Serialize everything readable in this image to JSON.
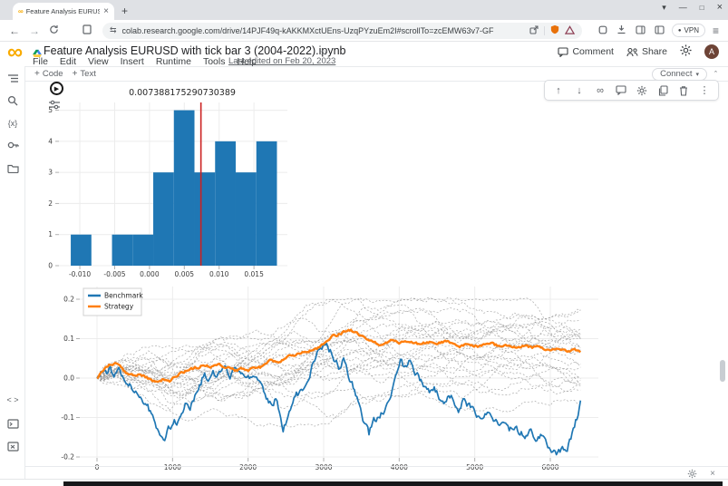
{
  "browser": {
    "tab_title": "Feature Analysis EURUSD with t",
    "url": "colab.research.google.com/drive/14PJF49q-kAKKMXctUEns-UzqPYzuEm2I#scrollTo=zcEMW63v7-GF",
    "vpn_label": "VPN"
  },
  "colab": {
    "title": "Feature Analysis EURUSD with tick bar 3 (2004-2022).ipynb",
    "menu_items": [
      "File",
      "Edit",
      "View",
      "Insert",
      "Runtime",
      "Tools",
      "Help"
    ],
    "last_edited": "Last edited on Feb 20, 2023",
    "comment_label": "Comment",
    "share_label": "Share",
    "avatar_letter": "A",
    "add_code_label": "Code",
    "add_text_label": "Text",
    "connect_label": "Connect"
  },
  "sidebar_icons": {
    "top": [
      "toc",
      "search",
      "variables",
      "secrets",
      "files"
    ],
    "bottom": [
      "code-snippets",
      "terminal",
      "executed-code"
    ]
  },
  "cell_toolbar_icons": [
    "move-up",
    "move-down",
    "link",
    "comment",
    "settings",
    "copy",
    "delete",
    "more"
  ],
  "chart_data": [
    {
      "type": "histogram",
      "title": "0.007388175290730389",
      "bar_color": "#1f77b4",
      "bin_start": -0.0113,
      "bin_width": 0.00296,
      "counts": [
        1,
        0,
        1,
        1,
        3,
        5,
        3,
        4,
        3,
        4
      ],
      "vline_x": 0.007388175290730389,
      "vline_color": "#cc2222",
      "xticks": [
        -0.01,
        -0.005,
        0.0,
        0.005,
        0.01,
        0.015
      ],
      "xtick_labels": [
        "-0.010",
        "-0.005",
        "0.000",
        "0.005",
        "0.010",
        "0.015"
      ],
      "yticks": [
        0,
        1,
        2,
        3,
        4,
        5
      ],
      "xlim": [
        -0.013,
        0.0198
      ],
      "ylim": [
        0,
        5.25
      ],
      "grid": true
    },
    {
      "type": "line",
      "xticks": [
        0,
        1000,
        2000,
        3000,
        4000,
        5000,
        6000
      ],
      "xtick_labels": [
        "0",
        "1000",
        "2000",
        "3000",
        "4000",
        "5000",
        "6000"
      ],
      "yticks": [
        0.2,
        0.1,
        0.0,
        -0.1,
        -0.2
      ],
      "ytick_labels": [
        "0.2",
        "0.1",
        "0.0",
        "-0.1",
        "-0.2"
      ],
      "xlim": [
        -300,
        6650
      ],
      "ylim": [
        -0.21,
        0.23
      ],
      "grid": true,
      "legend_position": "upper-left",
      "legend": [
        {
          "name": "Benchmark",
          "color": "#1f77b4"
        },
        {
          "name": "Strategy",
          "color": "#ff7f0e"
        }
      ],
      "series": [
        {
          "name": "Benchmark",
          "color": "#1f77b4",
          "points": [
            [
              0,
              0
            ],
            [
              60,
              0.018
            ],
            [
              120,
              0.012
            ],
            [
              160,
              0.028
            ],
            [
              220,
              0.008
            ],
            [
              280,
              0.02
            ],
            [
              340,
              0.005
            ],
            [
              400,
              -0.008
            ],
            [
              460,
              -0.025
            ],
            [
              520,
              -0.04
            ],
            [
              600,
              -0.05
            ],
            [
              660,
              -0.07
            ],
            [
              720,
              -0.09
            ],
            [
              780,
              -0.115
            ],
            [
              840,
              -0.15
            ],
            [
              900,
              -0.16
            ],
            [
              940,
              -0.12
            ],
            [
              980,
              -0.13
            ],
            [
              1020,
              -0.1
            ],
            [
              1060,
              -0.11
            ],
            [
              1120,
              -0.085
            ],
            [
              1180,
              -0.06
            ],
            [
              1240,
              -0.07
            ],
            [
              1300,
              -0.045
            ],
            [
              1360,
              -0.02
            ],
            [
              1420,
              0.012
            ],
            [
              1470,
              -0.005
            ],
            [
              1530,
              0.018
            ],
            [
              1580,
              0.002
            ],
            [
              1640,
              0.015
            ],
            [
              1700,
              0.025
            ],
            [
              1760,
              0.005
            ],
            [
              1820,
              0.018
            ],
            [
              1880,
              0.002
            ],
            [
              1940,
              0.012
            ],
            [
              2000,
              0.01
            ],
            [
              2060,
              -0.005
            ],
            [
              2120,
              0.002
            ],
            [
              2180,
              -0.02
            ],
            [
              2240,
              -0.045
            ],
            [
              2300,
              -0.065
            ],
            [
              2360,
              -0.055
            ],
            [
              2420,
              -0.09
            ],
            [
              2465,
              -0.13
            ],
            [
              2510,
              -0.105
            ],
            [
              2570,
              -0.065
            ],
            [
              2640,
              -0.045
            ],
            [
              2700,
              -0.035
            ],
            [
              2760,
              -0.015
            ],
            [
              2820,
              0.01
            ],
            [
              2880,
              0.045
            ],
            [
              2950,
              0.075
            ],
            [
              3040,
              0.085
            ],
            [
              3100,
              0.065
            ],
            [
              3160,
              0.045
            ],
            [
              3220,
              0.022
            ],
            [
              3270,
              0.05
            ],
            [
              3320,
              0.012
            ],
            [
              3380,
              -0.015
            ],
            [
              3440,
              -0.05
            ],
            [
              3490,
              -0.09
            ],
            [
              3530,
              -0.128
            ],
            [
              3570,
              -0.115
            ],
            [
              3600,
              -0.14
            ],
            [
              3660,
              -0.105
            ],
            [
              3720,
              -0.1
            ],
            [
              3780,
              -0.09
            ],
            [
              3840,
              -0.065
            ],
            [
              3900,
              -0.03
            ],
            [
              3960,
              0.02
            ],
            [
              4020,
              0.045
            ],
            [
              4080,
              0.025
            ],
            [
              4140,
              0.04
            ],
            [
              4200,
              0.015
            ],
            [
              4270,
              -0.002
            ],
            [
              4340,
              -0.02
            ],
            [
              4400,
              -0.035
            ],
            [
              4460,
              -0.02
            ],
            [
              4530,
              -0.05
            ],
            [
              4600,
              -0.062
            ],
            [
              4660,
              -0.045
            ],
            [
              4720,
              -0.055
            ],
            [
              4790,
              -0.078
            ],
            [
              4850,
              -0.058
            ],
            [
              4920,
              -0.07
            ],
            [
              5000,
              -0.088
            ],
            [
              5080,
              -0.1
            ],
            [
              5160,
              -0.092
            ],
            [
              5240,
              -0.108
            ],
            [
              5320,
              -0.118
            ],
            [
              5390,
              -0.108
            ],
            [
              5460,
              -0.13
            ],
            [
              5530,
              -0.12
            ],
            [
              5600,
              -0.135
            ],
            [
              5670,
              -0.148
            ],
            [
              5740,
              -0.138
            ],
            [
              5810,
              -0.158
            ],
            [
              5880,
              -0.148
            ],
            [
              5950,
              -0.172
            ],
            [
              6020,
              -0.185
            ],
            [
              6090,
              -0.196
            ],
            [
              6150,
              -0.178
            ],
            [
              6210,
              -0.188
            ],
            [
              6270,
              -0.155
            ],
            [
              6320,
              -0.12
            ],
            [
              6360,
              -0.095
            ],
            [
              6400,
              -0.048
            ]
          ]
        },
        {
          "name": "Strategy",
          "color": "#ff7f0e",
          "points": [
            [
              0,
              0
            ],
            [
              80,
              0.018
            ],
            [
              160,
              0.032
            ],
            [
              240,
              0.035
            ],
            [
              320,
              0.025
            ],
            [
              400,
              0.012
            ],
            [
              480,
              0.006
            ],
            [
              560,
              0.012
            ],
            [
              640,
              0.002
            ],
            [
              720,
              -0.006
            ],
            [
              800,
              -0.01
            ],
            [
              880,
              -0.002
            ],
            [
              960,
              -0.008
            ],
            [
              1040,
              0.004
            ],
            [
              1120,
              0.014
            ],
            [
              1200,
              0.02
            ],
            [
              1280,
              0.026
            ],
            [
              1360,
              0.03
            ],
            [
              1440,
              0.034
            ],
            [
              1520,
              0.03
            ],
            [
              1600,
              0.034
            ],
            [
              1680,
              0.03
            ],
            [
              1760,
              0.024
            ],
            [
              1840,
              0.02
            ],
            [
              1920,
              0.024
            ],
            [
              2000,
              0.02
            ],
            [
              2080,
              0.03
            ],
            [
              2160,
              0.026
            ],
            [
              2240,
              0.04
            ],
            [
              2320,
              0.046
            ],
            [
              2400,
              0.04
            ],
            [
              2480,
              0.05
            ],
            [
              2560,
              0.056
            ],
            [
              2640,
              0.06
            ],
            [
              2720,
              0.066
            ],
            [
              2800,
              0.07
            ],
            [
              2880,
              0.074
            ],
            [
              2960,
              0.08
            ],
            [
              3040,
              0.09
            ],
            [
              3120,
              0.106
            ],
            [
              3200,
              0.112
            ],
            [
              3280,
              0.118
            ],
            [
              3360,
              0.122
            ],
            [
              3440,
              0.114
            ],
            [
              3520,
              0.106
            ],
            [
              3600,
              0.092
            ],
            [
              3680,
              0.088
            ],
            [
              3760,
              0.086
            ],
            [
              3840,
              0.092
            ],
            [
              3920,
              0.096
            ],
            [
              4000,
              0.09
            ],
            [
              4080,
              0.096
            ],
            [
              4160,
              0.092
            ],
            [
              4240,
              0.086
            ],
            [
              4320,
              0.088
            ],
            [
              4400,
              0.092
            ],
            [
              4480,
              0.086
            ],
            [
              4560,
              0.09
            ],
            [
              4640,
              0.092
            ],
            [
              4720,
              0.086
            ],
            [
              4800,
              0.082
            ],
            [
              4880,
              0.086
            ],
            [
              4960,
              0.082
            ],
            [
              5040,
              0.08
            ],
            [
              5120,
              0.086
            ],
            [
              5200,
              0.09
            ],
            [
              5280,
              0.084
            ],
            [
              5360,
              0.08
            ],
            [
              5440,
              0.084
            ],
            [
              5520,
              0.082
            ],
            [
              5600,
              0.078
            ],
            [
              5680,
              0.082
            ],
            [
              5760,
              0.076
            ],
            [
              5840,
              0.08
            ],
            [
              5920,
              0.074
            ],
            [
              6000,
              0.072
            ],
            [
              6080,
              0.076
            ],
            [
              6160,
              0.072
            ],
            [
              6240,
              0.066
            ],
            [
              6320,
              0.07
            ],
            [
              6400,
              0.068
            ]
          ]
        }
      ],
      "ensemble": {
        "description": "gray dashed random-strategy equity paths",
        "count": 26,
        "color": "#8f8f8f",
        "dashed": true,
        "spread": 0.095,
        "seed": 11
      }
    }
  ]
}
